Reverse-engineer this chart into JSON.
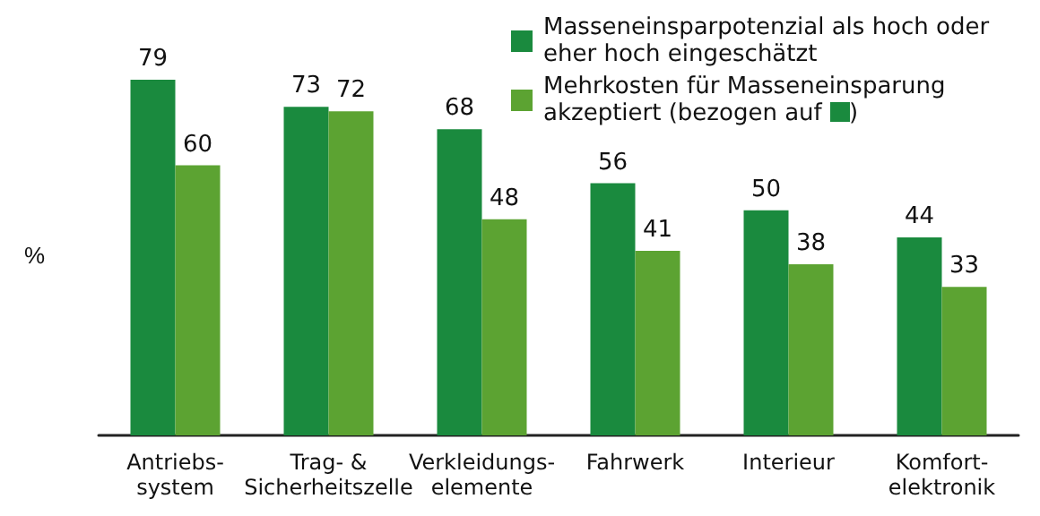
{
  "chart_data": {
    "type": "bar",
    "ylabel": "%",
    "categories": [
      "Antriebs-\nsystem",
      "Trag- &\nSicherheitszelle",
      "Verkleidungs-\nelemente",
      "Fahrwerk",
      "Interieur",
      "Komfort-\nelektronik"
    ],
    "series": [
      {
        "name": "Masseneinsparpotenzial als hoch oder eher hoch eingeschätzt",
        "color": "#1a8a3e",
        "values": [
          79,
          73,
          68,
          56,
          50,
          44
        ]
      },
      {
        "name": "Mehrkosten für Masseneinsparung akzeptiert (bezogen auf )",
        "color": "#5ca332",
        "values": [
          60,
          72,
          48,
          41,
          38,
          33
        ]
      }
    ],
    "data_labels": true,
    "grid": false,
    "legend": "top right"
  }
}
